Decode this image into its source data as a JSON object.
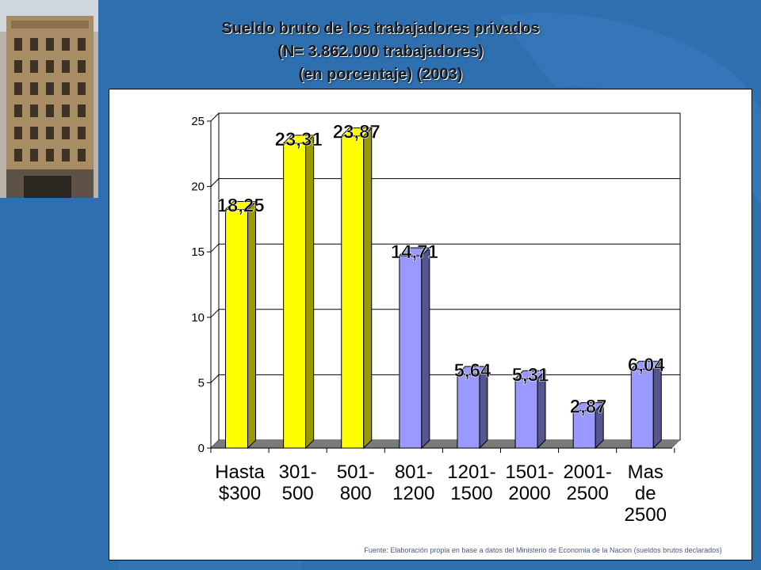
{
  "title": {
    "line1": "Sueldo bruto de los trabajadores privados",
    "line2": "(N= 3.862.000 trabajadores)",
    "line3": "(en porcentaje) (2003)"
  },
  "source": "Fuente: Elaboración propia en base a datos del Ministerio de Economia de la Nacion (sueldos brutos declarados)",
  "chart_data": {
    "type": "bar",
    "categories": [
      [
        "Hasta",
        "$300"
      ],
      [
        "301-",
        "500"
      ],
      [
        "501-",
        "800"
      ],
      [
        "801-",
        "1200"
      ],
      [
        "1201-",
        "1500"
      ],
      [
        "1501-",
        "2000"
      ],
      [
        "2001-",
        "2500"
      ],
      [
        "Mas",
        "de",
        "2500"
      ]
    ],
    "values": [
      18.25,
      23.31,
      23.87,
      14.71,
      5.64,
      5.31,
      2.87,
      6.04
    ],
    "value_labels": [
      "18,25",
      "23,31",
      "23,87",
      "14,71",
      "5,64",
      "5,31",
      "2,87",
      "6,04"
    ],
    "bar_colors": [
      "yellow",
      "yellow",
      "yellow",
      "periwinkle",
      "periwinkle",
      "periwinkle",
      "periwinkle",
      "periwinkle"
    ],
    "yticks": [
      0,
      5,
      10,
      15,
      20,
      25
    ],
    "ylim": [
      0,
      25
    ],
    "grid": true,
    "xlabel": "",
    "ylabel": ""
  },
  "colors": {
    "background": "#2e6fb0",
    "yellow_front": "#ffff00",
    "yellow_side": "#999900",
    "periwinkle_front": "#9999ff",
    "periwinkle_side": "#55558f",
    "floor": "#7a7a7a"
  }
}
